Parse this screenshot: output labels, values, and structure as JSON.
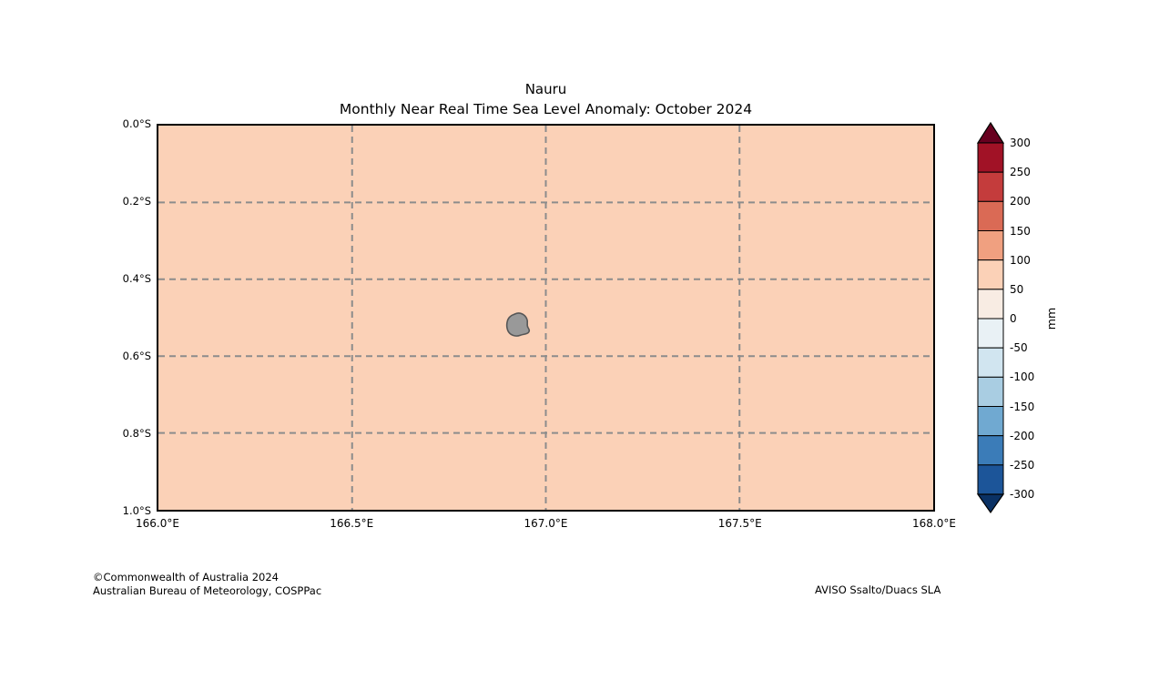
{
  "header": {
    "title": "Nauru",
    "subtitle": "Monthly Near Real Time Sea Level Anomaly: October 2024"
  },
  "chart_data": {
    "type": "heatmap",
    "title": "Nauru",
    "subtitle": "Monthly Near Real Time Sea Level Anomaly: October 2024",
    "x_axis": {
      "range": [
        166.0,
        168.0
      ],
      "tick_values": [
        166.0,
        166.5,
        167.0,
        167.5,
        168.0
      ],
      "tick_labels": [
        "166.0°E",
        "166.5°E",
        "167.0°E",
        "167.5°E",
        "168.0°E"
      ],
      "gridline_values": [
        166.5,
        167.0,
        167.5
      ]
    },
    "y_axis": {
      "range": [
        0.0,
        1.0
      ],
      "tick_values": [
        0.0,
        0.2,
        0.4,
        0.6,
        0.8,
        1.0
      ],
      "tick_labels": [
        "0.0°S",
        "0.2°S",
        "0.4°S",
        "0.6°S",
        "0.8°S",
        "1.0°S"
      ],
      "gridline_values": [
        0.2,
        0.4,
        0.6,
        0.8
      ]
    },
    "grid": {
      "style": "dashed",
      "color": "#8c8c8c"
    },
    "region_anomaly_band_mm": [
      50,
      100
    ],
    "region_fill_color": "#fbd1b7",
    "island": {
      "name": "Nauru",
      "lon_e": 166.93,
      "lat_s": 0.52,
      "fill": "#999999",
      "outline": "#575757"
    },
    "colorbar": {
      "unit_label": "mm",
      "tick_labels": [
        "300",
        "250",
        "200",
        "150",
        "100",
        "50",
        "0",
        "-50",
        "-100",
        "-150",
        "-200",
        "-250",
        "-300"
      ],
      "band_colors_top_to_bottom": [
        "#a11226",
        "#c43c3c",
        "#da6a55",
        "#f0a080",
        "#fbd1b7",
        "#f8ece3",
        "#e9f1f5",
        "#d1e5f0",
        "#a9cde2",
        "#70a9d1",
        "#3b7cb8",
        "#1c5599"
      ],
      "over_color": "#67001f",
      "under_color": "#0a3164"
    }
  },
  "footer": {
    "line1": "©Commonwealth of Australia 2024",
    "line2": "Australian Bureau of Meteorology, COSPPac",
    "credit_right": "AVISO Ssalto/Duacs SLA"
  }
}
